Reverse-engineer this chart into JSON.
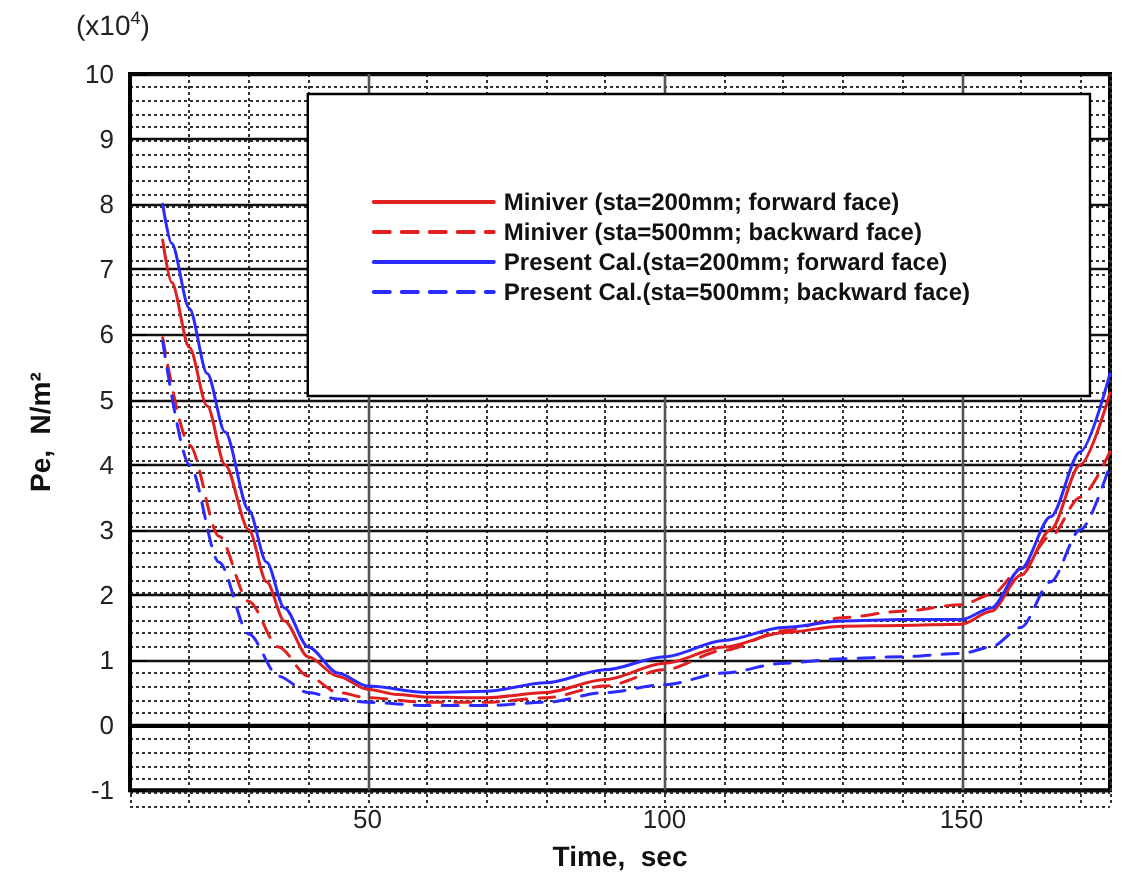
{
  "chart_data": {
    "type": "line",
    "xlabel": "Time,  sec",
    "ylabel": "Pe,  N/m²",
    "annotations": [
      "(x10$^{4}$)"
    ],
    "xlim": [
      10,
      175
    ],
    "xticks": [
      50,
      100,
      150
    ],
    "ylim": [
      -1,
      10
    ],
    "yticks": [
      -1,
      0,
      1,
      2,
      3,
      4,
      5,
      6,
      7,
      8,
      9,
      10
    ],
    "grid": true,
    "legend": "top right",
    "marker": "none",
    "series": [
      {
        "name": "Miniver (sta=200mm; forward face)",
        "color": "#e02020",
        "line_style": "solid",
        "x": [
          15.5,
          17,
          20,
          23,
          26,
          30,
          33,
          36,
          40,
          45,
          50,
          55,
          60,
          70,
          80,
          90,
          100,
          110,
          120,
          130,
          140,
          150,
          155,
          160,
          165,
          170,
          175
        ],
        "values": [
          7.45,
          6.8,
          5.8,
          4.9,
          4.0,
          3.0,
          2.2,
          1.6,
          1.05,
          0.75,
          0.55,
          0.47,
          0.43,
          0.42,
          0.5,
          0.7,
          0.95,
          1.2,
          1.42,
          1.52,
          1.53,
          1.55,
          1.75,
          2.3,
          3.0,
          4.0,
          5.1
        ]
      },
      {
        "name": "Miniver (sta=500mm; backward face)",
        "color": "#e02020",
        "line_style": "dashed",
        "x": [
          15.5,
          20,
          25,
          30,
          35,
          40,
          45,
          50,
          60,
          70,
          80,
          90,
          100,
          110,
          120,
          130,
          140,
          150,
          155,
          160,
          165,
          170,
          175
        ],
        "values": [
          5.95,
          4.3,
          2.9,
          1.9,
          1.2,
          0.75,
          0.5,
          0.42,
          0.35,
          0.35,
          0.42,
          0.6,
          0.85,
          1.15,
          1.45,
          1.65,
          1.75,
          1.85,
          2.0,
          2.4,
          2.9,
          3.5,
          4.2
        ]
      },
      {
        "name": "Present Cal.(sta=200mm; forward face)",
        "color": "#2b2bff",
        "line_style": "solid",
        "x": [
          15.5,
          17,
          20,
          23,
          26,
          30,
          33,
          36,
          40,
          45,
          50,
          60,
          70,
          80,
          90,
          100,
          110,
          120,
          130,
          140,
          150,
          155,
          160,
          165,
          170,
          175
        ],
        "values": [
          8.0,
          7.4,
          6.4,
          5.4,
          4.5,
          3.3,
          2.5,
          1.8,
          1.2,
          0.8,
          0.6,
          0.5,
          0.52,
          0.65,
          0.85,
          1.05,
          1.3,
          1.5,
          1.6,
          1.62,
          1.62,
          1.8,
          2.4,
          3.2,
          4.2,
          5.4
        ]
      },
      {
        "name": "Present Cal.(sta=500mm; backward face)",
        "color": "#2b2bff",
        "line_style": "dashed",
        "x": [
          15.5,
          20,
          25,
          30,
          35,
          40,
          45,
          50,
          60,
          70,
          80,
          90,
          100,
          110,
          120,
          130,
          140,
          150,
          155,
          160,
          165,
          170,
          175
        ],
        "values": [
          5.9,
          4.0,
          2.5,
          1.4,
          0.75,
          0.5,
          0.4,
          0.35,
          0.3,
          0.3,
          0.35,
          0.5,
          0.62,
          0.8,
          0.95,
          1.02,
          1.05,
          1.1,
          1.2,
          1.5,
          2.2,
          3.0,
          4.0
        ]
      }
    ]
  }
}
